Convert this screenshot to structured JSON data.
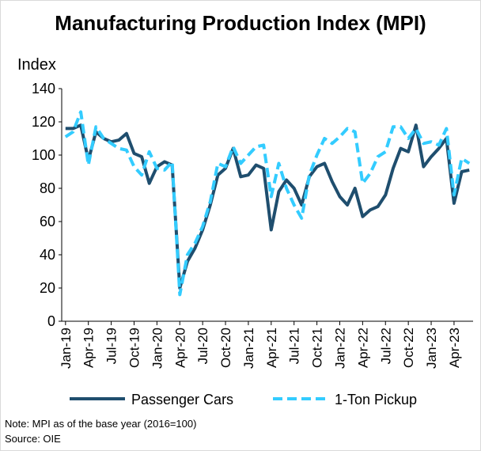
{
  "chart_data": {
    "type": "line",
    "title": "Manufacturing Production Index (MPI)",
    "y_label": "Index",
    "notes": [
      "Note: MPI as of the base year (2016=100)",
      "Source: OIE"
    ],
    "categories": [
      "Jan-19",
      null,
      null,
      "Apr-19",
      null,
      null,
      "Jul-19",
      null,
      null,
      "Oct-19",
      null,
      null,
      "Jan-20",
      null,
      null,
      "Apr-20",
      null,
      null,
      "Jul-20",
      null,
      null,
      "Oct-20",
      null,
      null,
      "Jan-21",
      null,
      null,
      "Apr-21",
      null,
      null,
      "Jul-21",
      null,
      null,
      "Oct-21",
      null,
      null,
      "Jan-22",
      null,
      null,
      "Apr-22",
      null,
      null,
      "Jul-22",
      null,
      null,
      "Oct-22",
      null,
      null,
      "Jan-23",
      null,
      null,
      "Apr-23",
      null,
      null
    ],
    "series": [
      {
        "name": "Passenger Cars",
        "color": "#1f4e6e",
        "dash": false,
        "values": [
          116,
          116,
          118,
          97,
          114,
          110,
          108,
          109,
          113,
          101,
          99,
          83,
          93,
          96,
          94,
          20,
          36,
          44,
          55,
          70,
          88,
          92,
          104,
          87,
          88,
          94,
          92,
          55,
          78,
          85,
          80,
          70,
          87,
          93,
          95,
          84,
          75,
          70,
          80,
          63,
          67,
          69,
          76,
          92,
          104,
          102,
          118,
          93,
          99,
          104,
          110,
          71,
          90,
          91
        ]
      },
      {
        "name": "1-Ton Pickup",
        "color": "#33ccff",
        "dash": true,
        "values": [
          111,
          114,
          126,
          94,
          117,
          110,
          107,
          104,
          103,
          93,
          88,
          102,
          92,
          91,
          96,
          16,
          40,
          47,
          57,
          72,
          95,
          93,
          105,
          95,
          100,
          105,
          106,
          75,
          95,
          80,
          70,
          62,
          88,
          100,
          110,
          107,
          111,
          116,
          114,
          83,
          89,
          99,
          102,
          117,
          117,
          110,
          116,
          107,
          108,
          106,
          116,
          76,
          98,
          95
        ]
      }
    ],
    "ylim": [
      0,
      140
    ],
    "yticks": [
      0,
      20,
      40,
      60,
      80,
      100,
      120,
      140
    ],
    "grid": false,
    "legend": "bottom"
  }
}
